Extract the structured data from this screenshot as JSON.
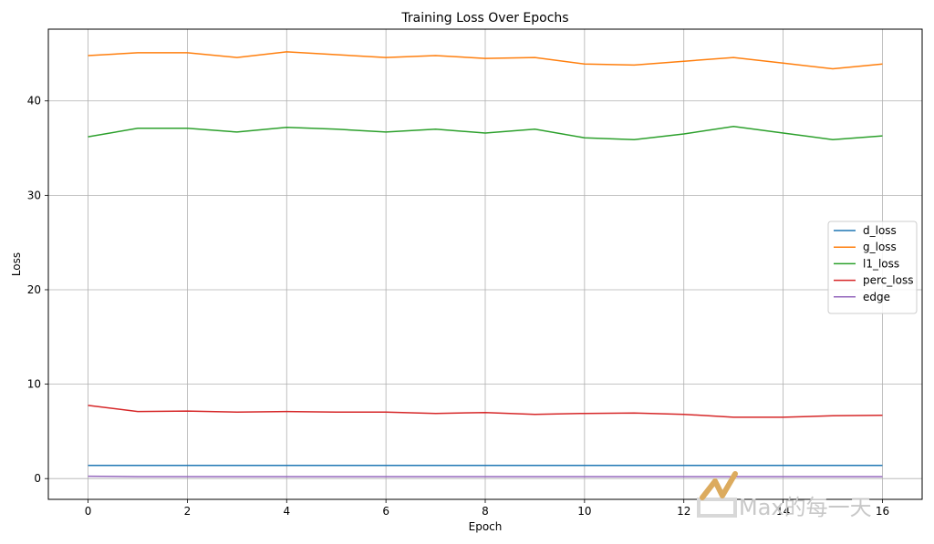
{
  "chart_data": {
    "type": "line",
    "title": "Training Loss Over Epochs",
    "xlabel": "Epoch",
    "ylabel": "Loss",
    "xlim": [
      -0.8,
      16.8
    ],
    "ylim": [
      -2.2,
      47.6
    ],
    "xticks": [
      0,
      2,
      4,
      6,
      8,
      10,
      12,
      14,
      16
    ],
    "yticks": [
      0,
      10,
      20,
      30,
      40
    ],
    "grid": true,
    "legend_position": "center-right",
    "x": [
      0,
      1,
      2,
      3,
      4,
      5,
      6,
      7,
      8,
      9,
      10,
      11,
      12,
      13,
      14,
      15,
      16
    ],
    "series": [
      {
        "name": "d_loss",
        "color": "#1f77b4",
        "values": [
          1.39,
          1.39,
          1.39,
          1.39,
          1.39,
          1.39,
          1.39,
          1.39,
          1.39,
          1.39,
          1.39,
          1.39,
          1.39,
          1.39,
          1.39,
          1.39,
          1.39
        ]
      },
      {
        "name": "g_loss",
        "color": "#ff7f0e",
        "values": [
          44.8,
          45.1,
          45.1,
          44.6,
          45.2,
          44.9,
          44.6,
          44.8,
          44.5,
          44.6,
          43.9,
          43.8,
          44.2,
          44.6,
          44.0,
          43.4,
          43.9
        ]
      },
      {
        "name": "l1_loss",
        "color": "#2ca02c",
        "values": [
          36.2,
          37.1,
          37.1,
          36.7,
          37.2,
          37.0,
          36.7,
          37.0,
          36.6,
          37.0,
          36.1,
          35.9,
          36.5,
          37.3,
          36.6,
          35.9,
          36.3
        ]
      },
      {
        "name": "perc_loss",
        "color": "#d62728",
        "values": [
          7.75,
          7.1,
          7.15,
          7.05,
          7.1,
          7.05,
          7.05,
          6.9,
          7.0,
          6.8,
          6.9,
          6.95,
          6.8,
          6.5,
          6.5,
          6.65,
          6.7
        ]
      },
      {
        "name": "edge",
        "color": "#9467bd",
        "values": [
          0.25,
          0.2,
          0.2,
          0.2,
          0.2,
          0.2,
          0.2,
          0.2,
          0.2,
          0.2,
          0.2,
          0.2,
          0.2,
          0.2,
          0.2,
          0.2,
          0.2
        ]
      }
    ]
  },
  "watermark": {
    "text": "Max的每一天"
  }
}
